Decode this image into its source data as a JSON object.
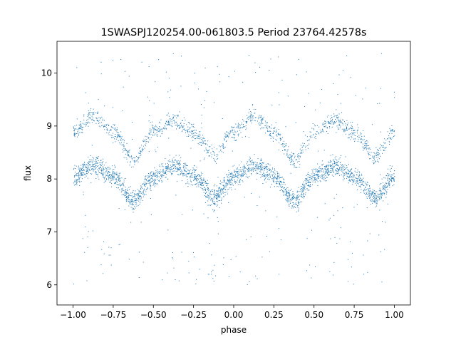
{
  "chart_data": {
    "type": "scatter",
    "title": "1SWASPJ120254.00-061803.5 Period 23764.42578s",
    "xlabel": "phase",
    "ylabel": "flux",
    "xlim": [
      -1.1,
      1.1
    ],
    "ylim": [
      5.62,
      10.6
    ],
    "xticks": [
      -1.0,
      -0.75,
      -0.5,
      -0.25,
      0.0,
      0.25,
      0.5,
      0.75,
      1.0
    ],
    "xtick_labels": [
      "−1.00",
      "−0.75",
      "−0.50",
      "−0.25",
      "0.00",
      "0.25",
      "0.50",
      "0.75",
      "1.00"
    ],
    "yticks": [
      6,
      7,
      8,
      9,
      10
    ],
    "ytick_labels": [
      "6",
      "7",
      "8",
      "9",
      "10"
    ],
    "grid": false,
    "legend": "none",
    "point_color": "#1f77b4",
    "series": [
      {
        "description_points": "phase-folded light curve, two bands",
        "lower_band": {
          "x": [
            -1.0,
            -0.875,
            -0.75,
            -0.625,
            -0.5,
            -0.375,
            -0.25,
            -0.125,
            0.0,
            0.125,
            0.25,
            0.375,
            0.5,
            0.625,
            0.75,
            0.875,
            1.0
          ],
          "y": [
            8.05,
            8.25,
            8.05,
            7.6,
            8.05,
            8.25,
            8.05,
            7.65,
            8.05,
            8.25,
            8.05,
            7.6,
            8.05,
            8.25,
            8.05,
            7.65,
            8.05
          ]
        },
        "upper_band": {
          "x": [
            -1.0,
            -0.875,
            -0.75,
            -0.625,
            -0.5,
            -0.375,
            -0.25,
            -0.125,
            0.0,
            0.125,
            0.25,
            0.375,
            0.5,
            0.625,
            0.75,
            0.875,
            1.0
          ],
          "y": [
            8.9,
            9.2,
            8.9,
            8.35,
            8.9,
            9.1,
            8.9,
            8.45,
            8.9,
            9.2,
            8.9,
            8.35,
            8.9,
            9.1,
            8.9,
            8.45,
            8.9
          ]
        }
      }
    ]
  }
}
